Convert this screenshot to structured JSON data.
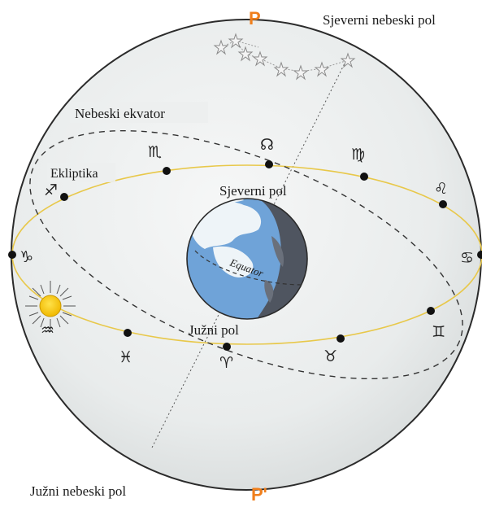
{
  "labels": {
    "north_celestial_pole": "Sjeverni nebeski pol",
    "south_celestial_pole": "Južni nebeski pol",
    "celestial_equator": "Nebeski ekvator",
    "ecliptic": "Ekliptika",
    "north_pole": "Sjeverni pol",
    "south_pole": "Južni pol",
    "equator": "Equator",
    "pole_top": "P",
    "pole_bottom": "P'"
  },
  "zodiac": {
    "scorpio": "♏",
    "leo_node": "☊",
    "virgo": "♍",
    "leo": "♌",
    "cancer": "♋",
    "gemini": "♊",
    "taurus": "♉",
    "aries": "♈",
    "pisces": "♓",
    "aquarius": "♒",
    "capricorn": "♑",
    "sagittarius": "♐"
  },
  "colors": {
    "sphere_fill": "#eceeee",
    "sphere_edge": "#2b2b2b",
    "ecliptic_line": "#e8c84a",
    "pole_label": "#f07f1c",
    "earth_ocean": "#6fa3d8",
    "earth_night": "#4f5560",
    "sun": "#f5c300"
  }
}
